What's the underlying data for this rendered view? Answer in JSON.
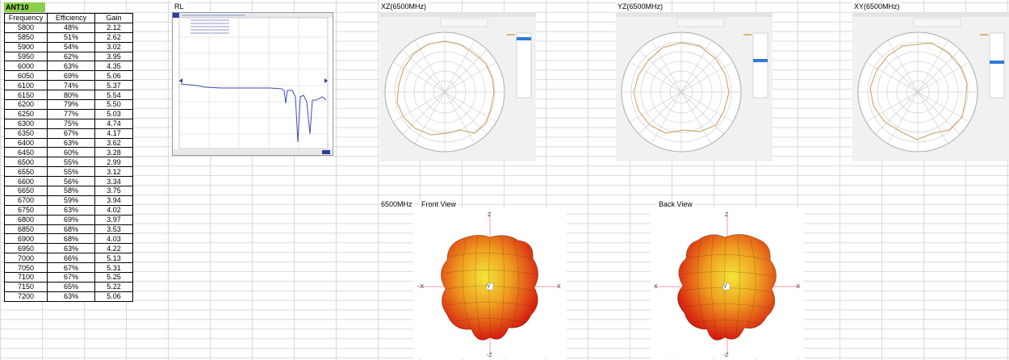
{
  "sheet": {
    "table_label": "ANT10",
    "headers": [
      "Frequency",
      "Efficiency",
      "Gain"
    ],
    "rows": [
      [
        "5800",
        "48%",
        "2.12"
      ],
      [
        "5850",
        "51%",
        "2.62"
      ],
      [
        "5900",
        "54%",
        "3.02"
      ],
      [
        "5950",
        "62%",
        "3.95"
      ],
      [
        "6000",
        "63%",
        "4.35"
      ],
      [
        "6050",
        "69%",
        "5.06"
      ],
      [
        "6100",
        "74%",
        "5.37"
      ],
      [
        "6150",
        "80%",
        "5.54"
      ],
      [
        "6200",
        "79%",
        "5.50"
      ],
      [
        "6250",
        "77%",
        "5.03"
      ],
      [
        "6300",
        "75%",
        "4.74"
      ],
      [
        "6350",
        "67%",
        "4.17"
      ],
      [
        "6400",
        "63%",
        "3.62"
      ],
      [
        "6450",
        "60%",
        "3.28"
      ],
      [
        "6500",
        "55%",
        "2.99"
      ],
      [
        "6550",
        "55%",
        "3.12"
      ],
      [
        "6600",
        "56%",
        "3.34"
      ],
      [
        "6650",
        "58%",
        "3.75"
      ],
      [
        "6700",
        "59%",
        "3.94"
      ],
      [
        "6750",
        "63%",
        "4.02"
      ],
      [
        "6800",
        "69%",
        "3.97"
      ],
      [
        "6850",
        "68%",
        "3.53"
      ],
      [
        "6900",
        "68%",
        "4.03"
      ],
      [
        "6950",
        "63%",
        "4.22"
      ],
      [
        "7000",
        "66%",
        "5.13"
      ],
      [
        "7050",
        "67%",
        "5.31"
      ],
      [
        "7100",
        "67%",
        "5.25"
      ],
      [
        "7150",
        "65%",
        "5.22"
      ],
      [
        "7200",
        "63%",
        "5.06"
      ]
    ]
  },
  "titles": {
    "rl": "RL",
    "xz": "XZ(6500MHz)",
    "yz": "YZ(6500MHz)",
    "xy": "XY(6500MHz)",
    "freq3d": "6500MHz",
    "front": "Front View",
    "back": "Back View"
  },
  "axes3d": {
    "z": "Z",
    "neg_z": "-Z",
    "x": "X",
    "neg_x": "-X",
    "y": "Y"
  },
  "colors": {
    "header_green": "#8ccf4a",
    "rl_trace": "#3b4bb0",
    "polar_trace": "#c89a5a",
    "highlight_blue": "#2f7ad6"
  }
}
